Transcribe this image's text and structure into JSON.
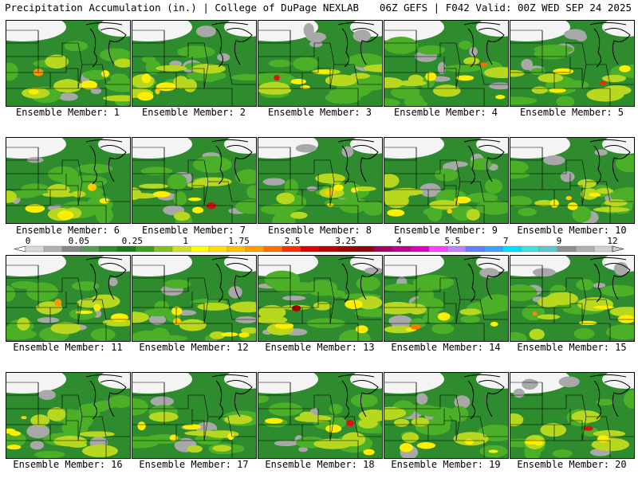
{
  "header": {
    "title": "Precipitation Accumulation (in.) | College of DuPage NEXLAB",
    "run_info": "06Z GEFS | F042 Valid: 00Z WED SEP 24 2025"
  },
  "member_label_prefix": "Ensemble Member: ",
  "members": [
    {
      "label": "Ensemble Member: 1",
      "max_color": "#ff9900"
    },
    {
      "label": "Ensemble Member: 2",
      "max_color": "#ffcc00"
    },
    {
      "label": "Ensemble Member: 3",
      "max_color": "#e01010"
    },
    {
      "label": "Ensemble Member: 4",
      "max_color": "#ff6600"
    },
    {
      "label": "Ensemble Member: 5",
      "max_color": "#e03010"
    },
    {
      "label": "Ensemble Member: 6",
      "max_color": "#ffcc00"
    },
    {
      "label": "Ensemble Member: 7",
      "max_color": "#d01010"
    },
    {
      "label": "Ensemble Member: 8",
      "max_color": "#ffcc00"
    },
    {
      "label": "Ensemble Member: 9",
      "max_color": "#ffcc00"
    },
    {
      "label": "Ensemble Member: 10",
      "max_color": "#ffcc00"
    },
    {
      "label": "Ensemble Member: 11",
      "max_color": "#ff9900"
    },
    {
      "label": "Ensemble Member: 12",
      "max_color": "#ffcc00"
    },
    {
      "label": "Ensemble Member: 13",
      "max_color": "#b00000"
    },
    {
      "label": "Ensemble Member: 14",
      "max_color": "#ff7700"
    },
    {
      "label": "Ensemble Member: 15",
      "max_color": "#ff8800"
    },
    {
      "label": "Ensemble Member: 16",
      "max_color": "#ffcc00"
    },
    {
      "label": "Ensemble Member: 17",
      "max_color": "#ffee00"
    },
    {
      "label": "Ensemble Member: 18",
      "max_color": "#e01010"
    },
    {
      "label": "Ensemble Member: 19",
      "max_color": "#ffee00"
    },
    {
      "label": "Ensemble Member: 20",
      "max_color": "#e01010"
    }
  ],
  "colorbar": {
    "labels": [
      "0",
      "0.05",
      "0.25",
      "1",
      "1.75",
      "2.5",
      "3.25",
      "4",
      "5.5",
      "7",
      "9",
      "12"
    ],
    "colors": [
      "#d8d8d8",
      "#b0b0b0",
      "#888888",
      "#5a9a5a",
      "#2e8b2e",
      "#1a7a1a",
      "#3aa01a",
      "#80c020",
      "#d0e020",
      "#ffff00",
      "#ffe000",
      "#ffc000",
      "#ffa000",
      "#ff7000",
      "#ff3000",
      "#e00000",
      "#c00000",
      "#a00000",
      "#900010",
      "#a00060",
      "#c00090",
      "#e000c0",
      "#ff40ff",
      "#c080ff",
      "#6080ff",
      "#40a0ff",
      "#00e0ff",
      "#40e0e0",
      "#60c8c8",
      "#909090",
      "#b0b0b0",
      "#d0d0d0"
    ]
  },
  "colors": {
    "background": "#ffffff",
    "base_green": "#2e8b2e",
    "light_green": "#4caf28",
    "yellow_green": "#b8d820",
    "yellow": "#ffee00",
    "orange": "#ff9900",
    "red": "#e01010",
    "gray": "#a8a8a8",
    "white_area": "#f4f4f4",
    "borders": "#000000"
  }
}
